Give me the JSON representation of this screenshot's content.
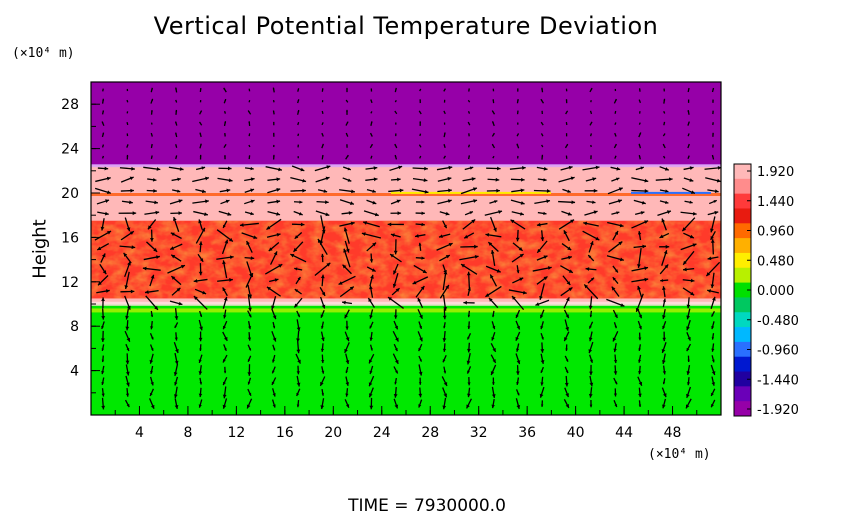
{
  "title": "Vertical Potential Temperature Deviation",
  "ylabel": "Height",
  "y_unit_label": "(×10⁴ m)",
  "x_unit_label": "(×10⁴ m)",
  "time_label": "TIME  =  7930000.0",
  "chart_data": {
    "type": "heatmap",
    "title": "Vertical Potential Temperature Deviation",
    "ylabel": "Height",
    "xlabel": "",
    "xlim": [
      0,
      52
    ],
    "ylim": [
      0,
      30
    ],
    "xticks": [
      "4",
      "8",
      "12",
      "16",
      "20",
      "24",
      "28",
      "32",
      "36",
      "40",
      "44",
      "48"
    ],
    "yticks": [
      "4",
      "8",
      "12",
      "16",
      "20",
      "24",
      "28"
    ],
    "colorbar": {
      "labels": [
        "1.920",
        "1.440",
        "0.960",
        "0.480",
        "0.000",
        "-0.480",
        "-0.960",
        "-1.440",
        "-1.920"
      ],
      "range": [
        -1.92,
        1.92
      ],
      "colors": [
        "#ffb8b8",
        "#ff8c8c",
        "#ff3a3a",
        "#e81b10",
        "#ff6a00",
        "#ffb000",
        "#ffee00",
        "#b8f000",
        "#00e000",
        "#00c860",
        "#00d8c0",
        "#00b8ff",
        "#2a70ff",
        "#0018d0",
        "#2000a0",
        "#6a00b8",
        "#9600a8"
      ]
    },
    "bands": [
      {
        "y_from": 22.5,
        "y_to": 30,
        "value": -1.92,
        "color": "#9600a8"
      },
      {
        "y_from": 10,
        "y_to": 22.5,
        "value": 1.92,
        "color": "#ffb8b8"
      },
      {
        "y_from": 10.5,
        "y_to": 17.5,
        "value": 1.6,
        "color": "#ff3a2a"
      },
      {
        "y_from": 0,
        "y_to": 10,
        "value": 0.0,
        "color": "#00e800"
      }
    ],
    "overlay": "velocity vectors"
  }
}
